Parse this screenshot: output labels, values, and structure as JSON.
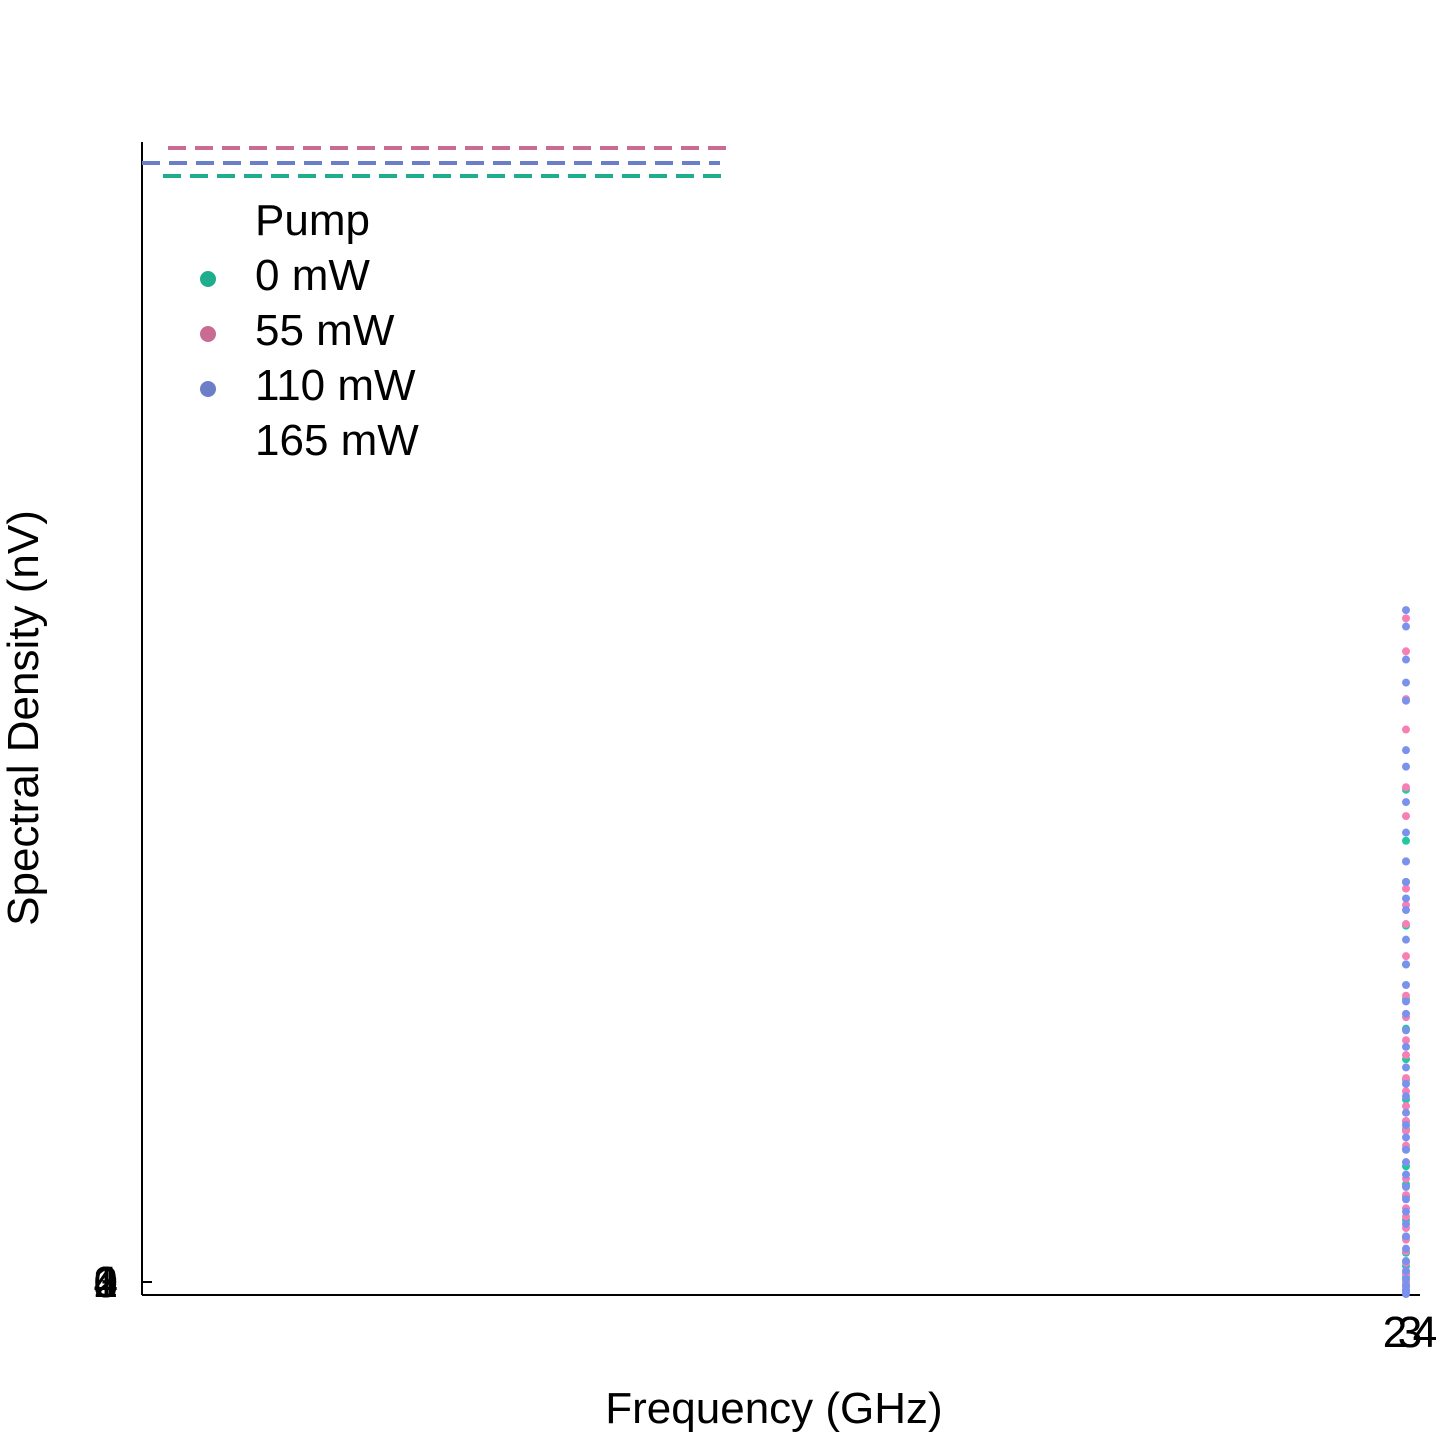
{
  "chart_data": {
    "type": "scatter",
    "title": "",
    "xlabel": "Frequency (GHz)",
    "ylabel": "Spectral Density (nV)",
    "grid": false,
    "legend": {
      "title": "Pump",
      "placement": "top-left",
      "entries": [
        {
          "label": "0 mW",
          "color": "#1fae8c"
        },
        {
          "label": "55 mW",
          "color": "#c96b93"
        },
        {
          "label": "110 mW",
          "color": "#6a7fc8"
        },
        {
          "label": "165 mW",
          "color": ""
        }
      ]
    },
    "x_tick_labels": [
      "2",
      "3",
      "4",
      "2",
      "3",
      "4"
    ],
    "y_tick_labels": [
      "0",
      "1",
      "2",
      "3",
      "4"
    ],
    "reference_lines": [
      {
        "series": "55 mW",
        "color": "#c96b93",
        "style": "dashed",
        "level": 1.0
      },
      {
        "series": "110 mW",
        "color": "#6a7fc8",
        "style": "dashed",
        "level": 0.988
      },
      {
        "series": "0 mW",
        "color": "#1fae8c",
        "style": "dashed",
        "level": 0.977
      }
    ],
    "series": [
      {
        "name": "0 mW",
        "color": "#22c9a0",
        "x": 2.5,
        "values": [
          0.005,
          0.012,
          0.021,
          0.034,
          0.05,
          0.068,
          0.09,
          0.118,
          0.133,
          0.155,
          0.176,
          0.2,
          0.209,
          0.236,
          0.26,
          0.285,
          0.322,
          0.358,
          0.4,
          0.447,
          0.5,
          0.55,
          0.612
        ]
      },
      {
        "name": "55 mW",
        "color": "#f77fb3",
        "x": 2.5,
        "values": [
          0.002,
          0.008,
          0.015,
          0.025,
          0.038,
          0.052,
          0.066,
          0.08,
          0.094,
          0.104,
          0.12,
          0.14,
          0.16,
          0.18,
          0.198,
          0.21,
          0.228,
          0.246,
          0.262,
          0.29,
          0.308,
          0.336,
          0.362,
          0.41,
          0.449,
          0.472,
          0.492,
          0.525,
          0.58,
          0.615,
          0.685,
          0.722,
          0.78,
          0.82
        ]
      },
      {
        "name": "110 mW",
        "color": "#7a92ee",
        "x": 2.5,
        "values": [
          0.0,
          0.004,
          0.01,
          0.018,
          0.028,
          0.04,
          0.055,
          0.07,
          0.085,
          0.1,
          0.115,
          0.13,
          0.145,
          0.16,
          0.175,
          0.19,
          0.205,
          0.22,
          0.24,
          0.255,
          0.275,
          0.3,
          0.32,
          0.34,
          0.355,
          0.375,
          0.4,
          0.43,
          0.466,
          0.48,
          0.5,
          0.525,
          0.56,
          0.597,
          0.64,
          0.66,
          0.72,
          0.742,
          0.77,
          0.81,
          0.83
        ]
      }
    ]
  }
}
